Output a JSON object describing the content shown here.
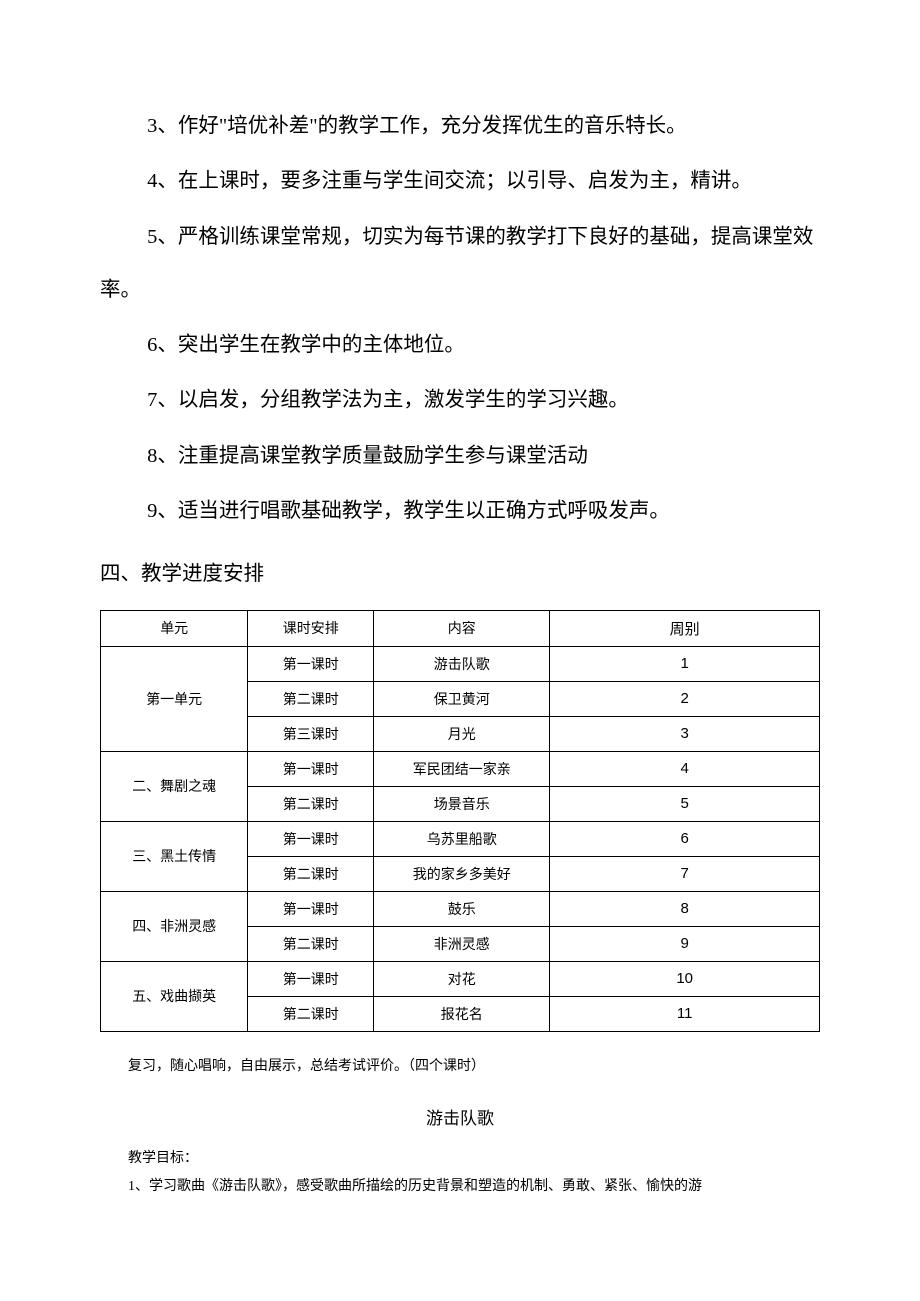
{
  "paragraphs": {
    "p3": "3、作好\"培优补差\"的教学工作，充分发挥优生的音乐特长。",
    "p4": "4、在上课时，要多注重与学生间交流；以引导、启发为主，精讲。",
    "p5": "5、严格训练课堂常规，切实为每节课的教学打下良好的基础，提高课堂效率。",
    "p6": "6、突出学生在教学中的主体地位。",
    "p7": "7、以启发，分组教学法为主，激发学生的学习兴趣。",
    "p8": "8、注重提高课堂教学质量鼓励学生参与课堂活动",
    "p9": "9、适当进行唱歌基础教学，教学生以正确方式呼吸发声。"
  },
  "section4_heading": "四、教学进度安排",
  "table": {
    "headers": [
      "单元",
      "课时安排",
      "内容",
      "周别"
    ],
    "units": [
      {
        "unit": "第一单元",
        "rows": [
          {
            "period": "第一课时",
            "content": "游击队歌",
            "week": "1"
          },
          {
            "period": "第二课时",
            "content": "保卫黄河",
            "week": "2"
          },
          {
            "period": "第三课时",
            "content": "月光",
            "week": "3"
          }
        ]
      },
      {
        "unit": "二、舞剧之魂",
        "rows": [
          {
            "period": "第一课时",
            "content": "军民团结一家亲",
            "week": "4"
          },
          {
            "period": "第二课时",
            "content": "场景音乐",
            "week": "5"
          }
        ]
      },
      {
        "unit": "三、黑土传情",
        "rows": [
          {
            "period": "第一课时",
            "content": "乌苏里船歌",
            "week": "6"
          },
          {
            "period": "第二课时",
            "content": "我的家乡多美好",
            "week": "7"
          }
        ]
      },
      {
        "unit": "四、非洲灵感",
        "rows": [
          {
            "period": "第一课时",
            "content": "鼓乐",
            "week": "8"
          },
          {
            "period": "第二课时",
            "content": "非洲灵感",
            "week": "9"
          }
        ]
      },
      {
        "unit": "五、戏曲撷英",
        "rows": [
          {
            "period": "第一课时",
            "content": "对花",
            "week": "10"
          },
          {
            "period": "第二课时",
            "content": "报花名",
            "week": "11"
          }
        ]
      }
    ]
  },
  "below_table_note": "复习，随心唱响，自由展示，总结考试评价。（四个课时）",
  "lesson_title": "游击队歌",
  "lesson_goal_label": "教学目标：",
  "lesson_goal_1": "1、学习歌曲《游击队歌》，感受歌曲所描绘的历史背景和塑造的机制、勇敢、紧张、愉快的游"
}
